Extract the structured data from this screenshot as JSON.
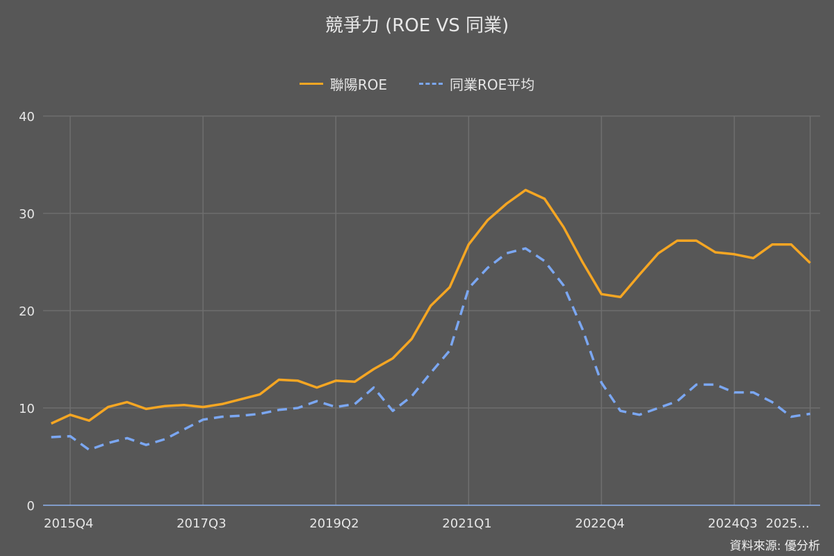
{
  "chart_data": {
    "type": "line",
    "title": "競爭力 (ROE VS 同業)",
    "xlabel": "",
    "ylabel": "",
    "ylim": [
      0,
      40
    ],
    "yticks": [
      0,
      10,
      20,
      30,
      40
    ],
    "grid": true,
    "legend_position": "top",
    "x": [
      "2015Q3",
      "2015Q4",
      "2016Q1",
      "2016Q2",
      "2016Q3",
      "2016Q4",
      "2017Q1",
      "2017Q2",
      "2017Q3",
      "2017Q4",
      "2018Q1",
      "2018Q2",
      "2018Q3",
      "2018Q4",
      "2019Q1",
      "2019Q2",
      "2019Q3",
      "2019Q4",
      "2020Q1",
      "2020Q2",
      "2020Q3",
      "2020Q4",
      "2021Q1",
      "2021Q2",
      "2021Q3",
      "2021Q4",
      "2022Q1",
      "2022Q2",
      "2022Q3",
      "2022Q4",
      "2023Q1",
      "2023Q2",
      "2023Q3",
      "2023Q4",
      "2024Q1",
      "2024Q2",
      "2024Q3",
      "2024Q4",
      "2025Q1",
      "2025Q2",
      "2025Q3"
    ],
    "xtick_labels": [
      "2015Q4",
      "2017Q3",
      "2019Q2",
      "2021Q1",
      "2022Q4",
      "2024Q3",
      "2025..."
    ],
    "xtick_values": [
      "2015Q4",
      "2017Q3",
      "2019Q2",
      "2021Q1",
      "2022Q4",
      "2024Q3",
      "2025Q3"
    ],
    "series": [
      {
        "name": "聯陽ROE",
        "color": "#F5A623",
        "style": "solid",
        "values": [
          8.4,
          9.3,
          8.7,
          10.1,
          10.6,
          9.9,
          10.2,
          10.3,
          10.1,
          10.4,
          10.9,
          11.4,
          12.9,
          12.8,
          12.1,
          12.8,
          12.7,
          14.0,
          15.1,
          17.1,
          20.5,
          22.4,
          26.8,
          29.3,
          31.0,
          32.4,
          31.5,
          28.6,
          25.0,
          21.7,
          21.4,
          23.7,
          25.9,
          27.2,
          27.2,
          26.0,
          25.8,
          25.4,
          26.8,
          26.8,
          24.9
        ]
      },
      {
        "name": "同業ROE平均",
        "color": "#7BA7F2",
        "style": "dashed",
        "values": [
          7.0,
          7.1,
          5.7,
          6.4,
          6.9,
          6.2,
          6.8,
          7.8,
          8.8,
          9.1,
          9.2,
          9.4,
          9.8,
          10.0,
          10.7,
          10.1,
          10.4,
          12.1,
          9.7,
          11.2,
          13.6,
          15.9,
          22.3,
          24.4,
          25.9,
          26.4,
          25.1,
          22.6,
          18.1,
          12.6,
          9.7,
          9.3,
          10.0,
          10.7,
          12.4,
          12.4,
          11.6,
          11.6,
          10.6,
          9.1,
          9.4
        ]
      }
    ]
  },
  "source": "資料來源: 優分析"
}
